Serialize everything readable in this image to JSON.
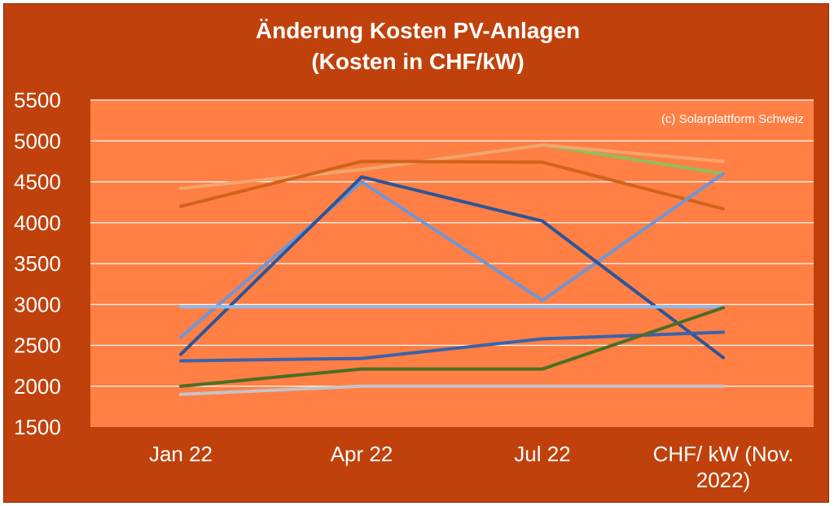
{
  "chart_data": {
    "type": "line",
    "title": "Änderung Kosten PV-Anlagen",
    "subtitle": "(Kosten in CHF/kW)",
    "annotation": "(c) Solarplattform Schweiz",
    "categories": [
      [
        "Jan 22"
      ],
      [
        "Apr 22"
      ],
      [
        "Jul 22"
      ],
      [
        "CHF/ kW (Nov.",
        "2022)"
      ]
    ],
    "ylim": [
      1500,
      5500
    ],
    "yticks": [
      "5500",
      "5000",
      "4500",
      "4000",
      "3500",
      "3000",
      "2500",
      "2000",
      "1500"
    ],
    "grid": true,
    "colors": {
      "background": "#c0410c",
      "plot_area": "#ff7f45",
      "grid": "#ffffff"
    },
    "series": [
      {
        "values": [
          4420,
          4650,
          4950,
          4600
        ],
        "color": "#8fbf5a"
      },
      {
        "values": [
          4420,
          4650,
          4950,
          4750
        ],
        "color": "#f4a46b"
      },
      {
        "values": [
          4200,
          4750,
          4740,
          4170
        ],
        "color": "#d2621a"
      },
      {
        "values": [
          2600,
          4500,
          3050,
          4600
        ],
        "color": "#6e96d6"
      },
      {
        "values": [
          2390,
          4560,
          4020,
          2350
        ],
        "color": "#2d5596"
      },
      {
        "values": [
          2970,
          2970,
          2970,
          2970
        ],
        "color": "#8db8e8"
      },
      {
        "values": [
          2310,
          2340,
          2580,
          2660
        ],
        "color": "#3a63a8"
      },
      {
        "values": [
          2000,
          2210,
          2210,
          2960
        ],
        "color": "#4b6e24"
      },
      {
        "values": [
          1900,
          2000,
          2000,
          2000
        ],
        "color": "#c4c4c4"
      }
    ]
  }
}
